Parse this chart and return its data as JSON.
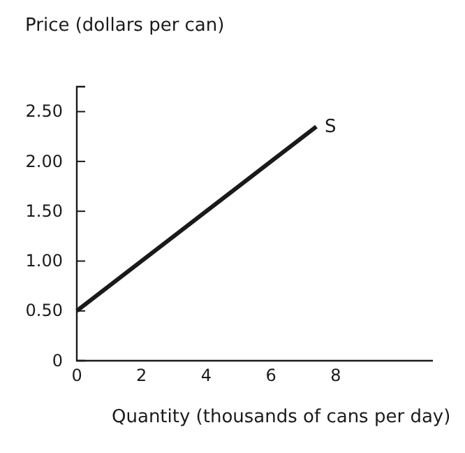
{
  "chart_data": {
    "type": "line",
    "ylabel": "Price (dollars per can)",
    "xlabel": "Quantity (thousands of cans per day)",
    "x": [
      0,
      2,
      4,
      6,
      7.4
    ],
    "series": [
      {
        "color": "#1a1a1a",
        "values": [
          0.5,
          1.0,
          1.5,
          2.0,
          2.35
        ]
      }
    ],
    "xlim": [
      0,
      11
    ],
    "ylim": [
      0,
      2.75
    ],
    "xticks": [
      0,
      2,
      4,
      6,
      8
    ],
    "yticks": [
      {
        "value": 0,
        "label": "0"
      },
      {
        "value": 0.5,
        "label": "0.50"
      },
      {
        "value": 1,
        "label": "1.00"
      },
      {
        "value": 1.5,
        "label": "1.50"
      },
      {
        "value": 2,
        "label": "2.00"
      },
      {
        "value": 2.5,
        "label": "2.50"
      }
    ],
    "annotations": [
      {
        "text": "S",
        "x": 7.4,
        "y": 2.35
      }
    ],
    "grid": false,
    "marker": "none",
    "line_style": "solid"
  }
}
